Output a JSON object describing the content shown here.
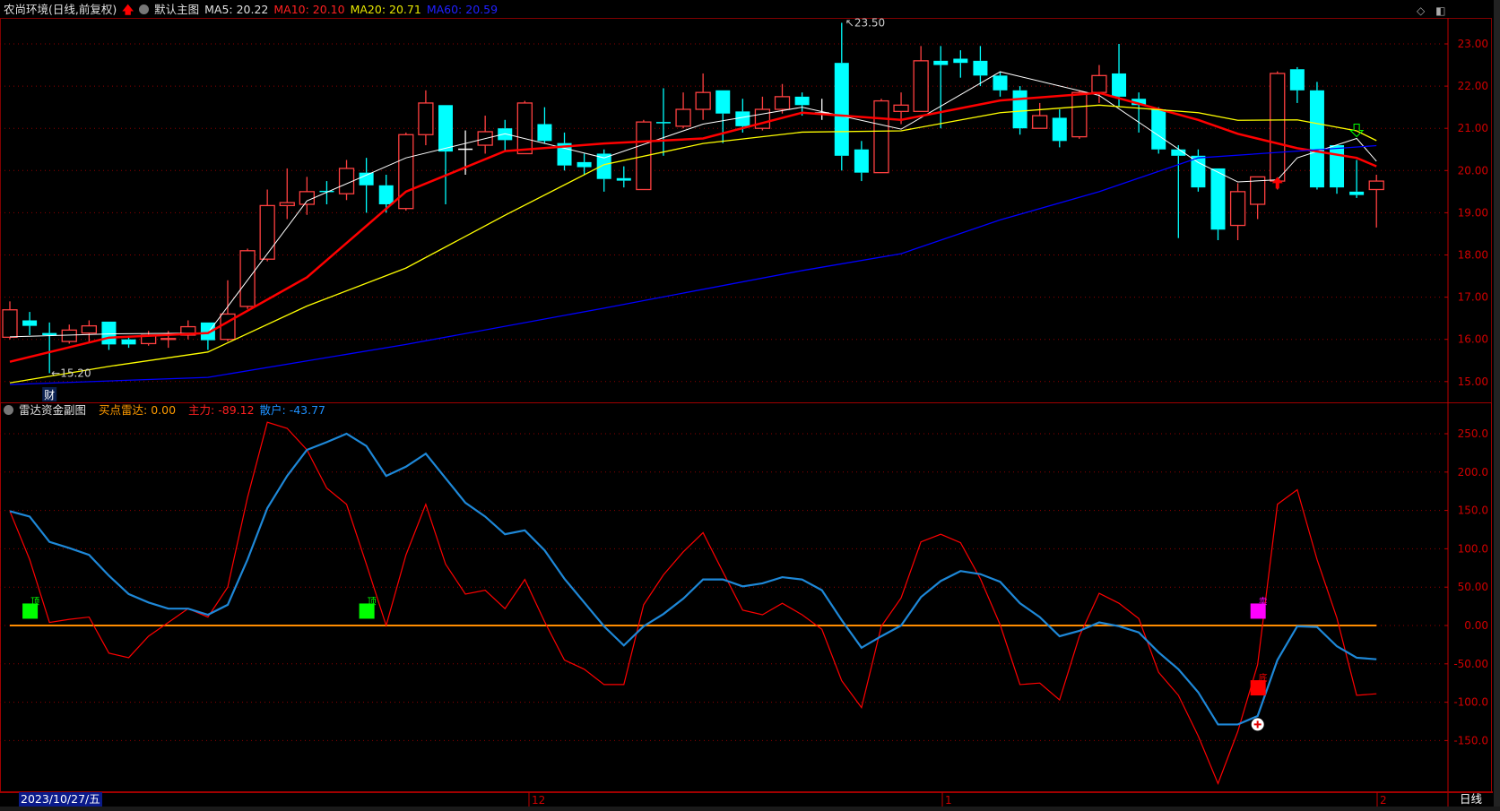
{
  "header": {
    "title": "农尚环境(日线,前复权)",
    "main_chart_label": "默认主图",
    "ma5": "MA5: 20.22",
    "ma10": "MA10: 20.10",
    "ma20": "MA20: 20.71",
    "ma60": "MA60: 20.59"
  },
  "sub_header": {
    "title": "雷达资金副图",
    "buy_radar": "买点雷达: 0.00",
    "main_force": "主力: -89.12",
    "retail": "散户: -43.77"
  },
  "annotations": {
    "high_label": "23.50",
    "low_label": "15.20",
    "finance_marker": "财"
  },
  "time_axis": {
    "cursor_date": "2023/10/27/五",
    "labels": [
      "12",
      "1",
      "2"
    ],
    "timeframe": "日线"
  },
  "icons": [
    "diamond-icon",
    "panel-toggle-icon"
  ],
  "colors": {
    "up": "#ff4040",
    "down": "#00ffff",
    "ma5": "#ffffff",
    "ma10": "#ff0000",
    "ma20": "#ffff00",
    "ma60": "#0000ff",
    "main_force": "#ff0000",
    "retail": "#1e88d8",
    "buy_radar": "#ff8c00",
    "axis": "#c00000"
  },
  "chart_data": [
    {
      "type": "candlestick",
      "ylim": [
        14.7,
        23.6
      ],
      "yticks": [
        "23.00",
        "22.00",
        "21.00",
        "20.00",
        "19.00",
        "18.00",
        "17.00",
        "16.00",
        "15.00"
      ],
      "grid": true,
      "ohlc": [
        [
          16.05,
          16.9,
          16.0,
          16.7
        ],
        [
          16.45,
          16.65,
          16.1,
          16.32
        ],
        [
          16.15,
          16.4,
          15.2,
          16.1
        ],
        [
          15.95,
          16.35,
          15.9,
          16.22
        ],
        [
          16.15,
          16.45,
          15.95,
          16.32
        ],
        [
          16.42,
          16.42,
          15.75,
          15.88
        ],
        [
          16.0,
          16.05,
          15.8,
          15.88
        ],
        [
          15.9,
          16.2,
          15.85,
          16.1
        ],
        [
          16.0,
          16.2,
          15.8,
          16.02
        ],
        [
          16.1,
          16.45,
          16.0,
          16.3
        ],
        [
          16.4,
          16.4,
          15.75,
          15.98
        ],
        [
          16.0,
          17.4,
          15.95,
          16.6
        ],
        [
          16.78,
          18.15,
          16.72,
          18.1
        ],
        [
          17.9,
          19.55,
          17.85,
          19.17
        ],
        [
          19.17,
          20.05,
          18.85,
          19.24
        ],
        [
          19.2,
          19.85,
          18.95,
          19.5
        ],
        [
          19.52,
          19.75,
          19.2,
          19.5
        ],
        [
          19.45,
          20.25,
          19.3,
          20.05
        ],
        [
          19.95,
          20.3,
          19.0,
          19.65
        ],
        [
          19.65,
          19.9,
          19.0,
          19.2
        ],
        [
          19.1,
          20.9,
          19.05,
          20.85
        ],
        [
          20.85,
          21.9,
          20.6,
          21.6
        ],
        [
          21.55,
          21.55,
          19.2,
          20.45
        ],
        [
          20.52,
          20.95,
          19.9,
          20.52
        ],
        [
          20.6,
          21.3,
          20.4,
          20.92
        ],
        [
          21.0,
          21.2,
          20.45,
          20.72
        ],
        [
          20.4,
          21.65,
          20.4,
          21.6
        ],
        [
          21.1,
          21.5,
          20.65,
          20.7
        ],
        [
          20.65,
          20.9,
          20.0,
          20.12
        ],
        [
          20.2,
          20.4,
          19.9,
          20.08
        ],
        [
          20.4,
          20.5,
          19.5,
          19.8
        ],
        [
          19.82,
          20.1,
          19.6,
          19.76
        ],
        [
          19.55,
          21.2,
          19.55,
          21.15
        ],
        [
          21.15,
          21.95,
          20.35,
          21.12
        ],
        [
          21.05,
          21.85,
          21.0,
          21.45
        ],
        [
          21.45,
          22.3,
          21.2,
          21.85
        ],
        [
          21.9,
          21.9,
          20.65,
          21.35
        ],
        [
          21.4,
          21.7,
          20.9,
          21.05
        ],
        [
          21.0,
          21.75,
          20.95,
          21.45
        ],
        [
          21.45,
          22.05,
          21.35,
          21.75
        ],
        [
          21.75,
          21.85,
          21.3,
          21.55
        ],
        [
          21.38,
          21.7,
          21.2,
          21.38
        ],
        [
          22.55,
          23.5,
          20.0,
          20.35
        ],
        [
          20.5,
          20.7,
          19.75,
          19.95
        ],
        [
          19.95,
          21.7,
          19.95,
          21.65
        ],
        [
          21.4,
          21.85,
          21.1,
          21.55
        ],
        [
          21.4,
          22.95,
          21.4,
          22.6
        ],
        [
          22.6,
          22.95,
          21.0,
          22.5
        ],
        [
          22.65,
          22.85,
          22.2,
          22.55
        ],
        [
          22.6,
          22.95,
          22.0,
          22.25
        ],
        [
          22.25,
          22.35,
          21.75,
          21.9
        ],
        [
          21.9,
          22.0,
          20.85,
          21.0
        ],
        [
          21.0,
          21.6,
          21.0,
          21.3
        ],
        [
          21.25,
          21.45,
          20.55,
          20.7
        ],
        [
          20.8,
          21.9,
          20.75,
          21.85
        ],
        [
          21.85,
          22.5,
          21.6,
          22.25
        ],
        [
          22.3,
          23.0,
          21.5,
          21.75
        ],
        [
          21.7,
          21.85,
          20.9,
          21.55
        ],
        [
          21.45,
          21.5,
          20.4,
          20.5
        ],
        [
          20.5,
          20.6,
          18.4,
          20.35
        ],
        [
          20.35,
          20.5,
          19.5,
          19.6
        ],
        [
          20.05,
          20.05,
          18.35,
          18.6
        ],
        [
          18.7,
          19.7,
          18.35,
          19.5
        ],
        [
          19.2,
          19.85,
          18.85,
          19.85
        ],
        [
          19.75,
          22.35,
          19.55,
          22.3
        ],
        [
          22.4,
          22.45,
          21.6,
          21.9
        ],
        [
          21.9,
          22.1,
          19.55,
          19.6
        ],
        [
          20.6,
          20.6,
          19.45,
          19.6
        ],
        [
          19.5,
          20.25,
          19.35,
          19.42
        ],
        [
          19.55,
          19.9,
          18.65,
          19.75
        ]
      ],
      "moving_averages": {
        "MA5": {
          "at": [
            0,
            5,
            10,
            15,
            20,
            25,
            30,
            35,
            40,
            45,
            50,
            55,
            60,
            62,
            64,
            65,
            68,
            69
          ],
          "values": [
            16.06,
            16.13,
            16.15,
            19.28,
            20.3,
            20.87,
            20.3,
            21.1,
            21.5,
            20.98,
            22.34,
            21.78,
            20.19,
            19.73,
            19.78,
            20.3,
            20.76,
            20.22
          ]
        },
        "MA10": {
          "at": [
            0,
            5,
            10,
            15,
            20,
            25,
            30,
            35,
            40,
            45,
            50,
            55,
            60,
            62,
            65,
            68,
            69
          ],
          "values": [
            15.47,
            16.04,
            16.15,
            17.47,
            19.5,
            20.46,
            20.64,
            20.76,
            21.37,
            21.2,
            21.66,
            21.84,
            21.2,
            20.87,
            20.53,
            20.3,
            20.1
          ]
        },
        "MA20": {
          "at": [
            0,
            5,
            10,
            15,
            20,
            25,
            30,
            35,
            40,
            45,
            50,
            55,
            60,
            62,
            65,
            68,
            69
          ],
          "values": [
            14.97,
            15.36,
            15.7,
            16.79,
            17.69,
            18.94,
            20.14,
            20.64,
            20.91,
            20.94,
            21.37,
            21.55,
            21.37,
            21.19,
            21.2,
            20.94,
            20.71
          ]
        },
        "MA60": {
          "at": [
            0,
            10,
            20,
            30,
            40,
            45,
            50,
            55,
            60,
            65,
            69
          ],
          "values": [
            14.93,
            15.1,
            15.88,
            16.74,
            17.63,
            18.03,
            18.83,
            19.5,
            20.3,
            20.46,
            20.59
          ]
        }
      },
      "signals": {
        "buy_arrow_at": 64,
        "sell_arrow_at": 68
      }
    },
    {
      "type": "line",
      "ylim": [
        -215,
        290
      ],
      "yticks": [
        "250.0",
        "200.0",
        "150.0",
        "100.0",
        "50.00",
        "0.00",
        "-50.00",
        "-100.0",
        "-150.0"
      ],
      "grid": true,
      "series": [
        {
          "name": "主力",
          "values": [
            149,
            86,
            4,
            8,
            11,
            -36,
            -42,
            -14,
            4,
            22,
            11,
            50,
            167,
            265,
            257,
            229,
            179,
            158,
            80,
            0,
            92,
            158,
            80,
            41,
            46,
            22,
            60,
            5,
            -45,
            -57,
            -77,
            -77,
            27,
            66,
            96,
            121,
            70,
            20,
            14,
            29,
            14,
            -5,
            -72,
            -107,
            -1,
            36,
            109,
            119,
            108,
            61,
            1,
            -77,
            -75,
            -97,
            -14,
            42,
            29,
            9,
            -61,
            -91,
            -144,
            -206,
            -138,
            -51,
            158,
            177,
            86,
            10,
            -91,
            -89
          ]
        },
        {
          "name": "散户",
          "values": [
            149,
            142,
            109,
            101,
            92,
            65,
            41,
            30,
            22,
            22,
            14,
            27,
            86,
            153,
            195,
            229,
            239,
            250,
            234,
            195,
            207,
            224,
            192,
            160,
            142,
            119,
            124,
            98,
            61,
            30,
            -1,
            -26,
            -1,
            15,
            35,
            60,
            60,
            51,
            55,
            63,
            60,
            46,
            7,
            -29,
            -14,
            0,
            37,
            58,
            71,
            67,
            57,
            29,
            11,
            -14,
            -7,
            4,
            -1,
            -9,
            -35,
            -57,
            -87,
            -129,
            -129,
            -118,
            -45,
            -1,
            -2,
            -27,
            -42,
            -44
          ]
        },
        {
          "name": "买点雷达",
          "values": [
            0
          ]
        }
      ],
      "markers": [
        {
          "at": 1,
          "value": 10,
          "color": "#00ff00",
          "label": "顶"
        },
        {
          "at": 18,
          "value": 10,
          "color": "#00ff00",
          "label": "顶"
        },
        {
          "at": 63,
          "value": 10,
          "color": "#ff00ff",
          "label": "卖"
        },
        {
          "at": 63,
          "value": -90,
          "color": "#ff0000",
          "label": "底"
        },
        {
          "at": 63,
          "value": -129,
          "color": "#ffffff",
          "label": ""
        }
      ]
    }
  ]
}
